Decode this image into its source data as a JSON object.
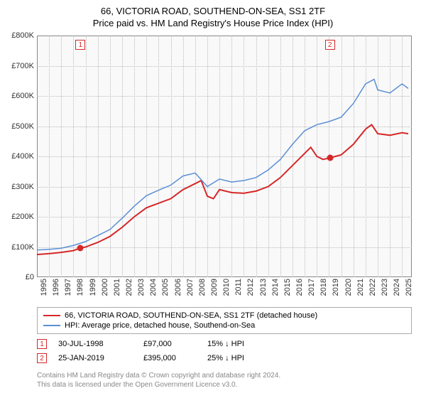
{
  "title": {
    "main": "66, VICTORIA ROAD, SOUTHEND-ON-SEA, SS1 2TF",
    "sub": "Price paid vs. HM Land Registry's House Price Index (HPI)"
  },
  "chart": {
    "type": "line",
    "background_color": "#f9f9f9",
    "grid_color": "#bbbbbb",
    "border_color": "#888888",
    "y_axis": {
      "min": 0,
      "max": 800000,
      "ticks": [
        0,
        100000,
        200000,
        300000,
        400000,
        500000,
        600000,
        700000,
        800000
      ],
      "labels": [
        "£0",
        "£100K",
        "£200K",
        "£300K",
        "£400K",
        "£500K",
        "£600K",
        "£700K",
        "£800K"
      ],
      "label_fontsize": 11
    },
    "x_axis": {
      "min": 1995,
      "max": 2025.8,
      "ticks": [
        1995,
        1996,
        1997,
        1998,
        1999,
        2000,
        2001,
        2002,
        2003,
        2004,
        2005,
        2006,
        2007,
        2008,
        2009,
        2010,
        2011,
        2012,
        2013,
        2014,
        2015,
        2016,
        2017,
        2018,
        2019,
        2020,
        2021,
        2022,
        2023,
        2024,
        2025
      ],
      "labels": [
        "1995",
        "1996",
        "1997",
        "1998",
        "1999",
        "2000",
        "2001",
        "2002",
        "2003",
        "2004",
        "2005",
        "2006",
        "2007",
        "2008",
        "2009",
        "2010",
        "2011",
        "2012",
        "2013",
        "2014",
        "2015",
        "2016",
        "2017",
        "2018",
        "2019",
        "2020",
        "2021",
        "2022",
        "2023",
        "2024",
        "2025"
      ],
      "label_fontsize": 11,
      "label_rotation": -90
    },
    "series": [
      {
        "name": "price_paid",
        "label": "66, VICTORIA ROAD, SOUTHEND-ON-SEA, SS1 2TF (detached house)",
        "color": "#d62728",
        "line_width": 2,
        "data": [
          [
            1995.0,
            75000
          ],
          [
            1996.0,
            78000
          ],
          [
            1997.0,
            82000
          ],
          [
            1998.0,
            88000
          ],
          [
            1998.58,
            97000
          ],
          [
            1999.0,
            100000
          ],
          [
            2000.0,
            115000
          ],
          [
            2001.0,
            135000
          ],
          [
            2002.0,
            165000
          ],
          [
            2003.0,
            200000
          ],
          [
            2004.0,
            230000
          ],
          [
            2005.0,
            245000
          ],
          [
            2006.0,
            260000
          ],
          [
            2007.0,
            290000
          ],
          [
            2008.0,
            310000
          ],
          [
            2008.5,
            320000
          ],
          [
            2009.0,
            268000
          ],
          [
            2009.5,
            260000
          ],
          [
            2010.0,
            290000
          ],
          [
            2011.0,
            280000
          ],
          [
            2012.0,
            278000
          ],
          [
            2013.0,
            285000
          ],
          [
            2014.0,
            300000
          ],
          [
            2015.0,
            330000
          ],
          [
            2016.0,
            370000
          ],
          [
            2017.0,
            410000
          ],
          [
            2017.5,
            430000
          ],
          [
            2018.0,
            400000
          ],
          [
            2018.5,
            390000
          ],
          [
            2019.07,
            395000
          ],
          [
            2020.0,
            405000
          ],
          [
            2021.0,
            440000
          ],
          [
            2022.0,
            490000
          ],
          [
            2022.5,
            505000
          ],
          [
            2023.0,
            475000
          ],
          [
            2024.0,
            470000
          ],
          [
            2025.0,
            478000
          ],
          [
            2025.5,
            475000
          ]
        ]
      },
      {
        "name": "hpi",
        "label": "HPI: Average price, detached house, Southend-on-Sea",
        "color": "#5b8fd6",
        "line_width": 1.5,
        "data": [
          [
            1995.0,
            90000
          ],
          [
            1996.0,
            92000
          ],
          [
            1997.0,
            96000
          ],
          [
            1998.0,
            105000
          ],
          [
            1999.0,
            118000
          ],
          [
            2000.0,
            138000
          ],
          [
            2001.0,
            158000
          ],
          [
            2002.0,
            195000
          ],
          [
            2003.0,
            235000
          ],
          [
            2004.0,
            270000
          ],
          [
            2005.0,
            288000
          ],
          [
            2006.0,
            305000
          ],
          [
            2007.0,
            335000
          ],
          [
            2008.0,
            345000
          ],
          [
            2009.0,
            300000
          ],
          [
            2010.0,
            325000
          ],
          [
            2011.0,
            315000
          ],
          [
            2012.0,
            320000
          ],
          [
            2013.0,
            330000
          ],
          [
            2014.0,
            355000
          ],
          [
            2015.0,
            390000
          ],
          [
            2016.0,
            440000
          ],
          [
            2017.0,
            485000
          ],
          [
            2018.0,
            505000
          ],
          [
            2019.0,
            515000
          ],
          [
            2020.0,
            530000
          ],
          [
            2021.0,
            575000
          ],
          [
            2022.0,
            640000
          ],
          [
            2022.7,
            655000
          ],
          [
            2023.0,
            620000
          ],
          [
            2024.0,
            610000
          ],
          [
            2025.0,
            640000
          ],
          [
            2025.5,
            625000
          ]
        ]
      }
    ],
    "markers": [
      {
        "id": "1",
        "x": 1998.58,
        "y": 97000,
        "color": "#d62728"
      },
      {
        "id": "2",
        "x": 2019.07,
        "y": 395000,
        "color": "#d62728"
      }
    ]
  },
  "legend": {
    "items": [
      {
        "color": "#d62728",
        "label": "66, VICTORIA ROAD, SOUTHEND-ON-SEA, SS1 2TF (detached house)"
      },
      {
        "color": "#5b8fd6",
        "label": "HPI: Average price, detached house, Southend-on-Sea"
      }
    ]
  },
  "sales": [
    {
      "id": "1",
      "color": "#d62728",
      "date": "30-JUL-1998",
      "price": "£97,000",
      "pct": "15%",
      "arrow": "↓",
      "note": "HPI"
    },
    {
      "id": "2",
      "color": "#d62728",
      "date": "25-JAN-2019",
      "price": "£395,000",
      "pct": "25%",
      "arrow": "↓",
      "note": "HPI"
    }
  ],
  "license": {
    "line1": "Contains HM Land Registry data © Crown copyright and database right 2024.",
    "line2": "This data is licensed under the Open Government Licence v3.0."
  }
}
